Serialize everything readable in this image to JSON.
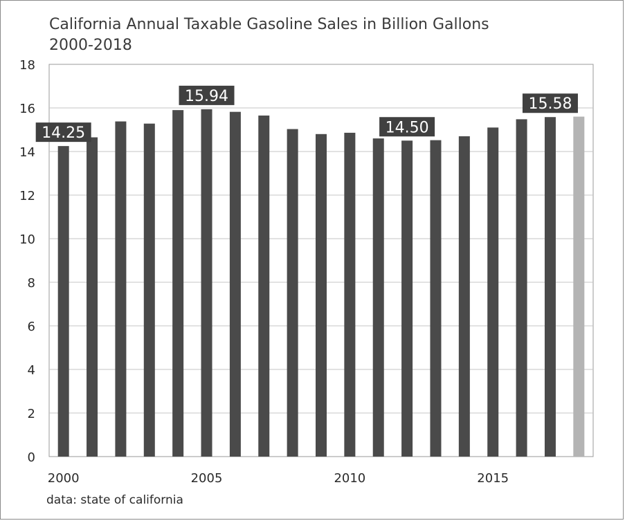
{
  "chart_data": {
    "type": "bar",
    "title": "California Annual Taxable Gasoline Sales in Billion Gallons",
    "subtitle": "2000-2018",
    "source": "data: state of california",
    "x": [
      2000,
      2001,
      2002,
      2003,
      2004,
      2005,
      2006,
      2007,
      2008,
      2009,
      2010,
      2011,
      2012,
      2013,
      2014,
      2015,
      2016,
      2017,
      2018
    ],
    "values": [
      14.25,
      14.65,
      15.38,
      15.28,
      15.9,
      15.94,
      15.82,
      15.65,
      15.03,
      14.8,
      14.86,
      14.6,
      14.5,
      14.52,
      14.7,
      15.1,
      15.48,
      15.58,
      15.6
    ],
    "bar_color": "#4a4a4a",
    "highlight_color": "#b4b4b4",
    "highlight_index": 18,
    "ylim": [
      0,
      18
    ],
    "yticks": [
      "0",
      "2",
      "4",
      "6",
      "8",
      "10",
      "12",
      "14",
      "16",
      "18"
    ],
    "xticks": [
      {
        "value": 2000,
        "label": "2000"
      },
      {
        "value": 2005,
        "label": "2005"
      },
      {
        "value": 2010,
        "label": "2010"
      },
      {
        "value": 2015,
        "label": "2015"
      }
    ],
    "annotations": [
      {
        "index": 0,
        "label": "14.25"
      },
      {
        "index": 5,
        "label": "15.94"
      },
      {
        "index": 12,
        "label": "14.50"
      },
      {
        "index": 17,
        "label": "15.58"
      }
    ],
    "grid": true,
    "label_bg_color": "#404040"
  }
}
